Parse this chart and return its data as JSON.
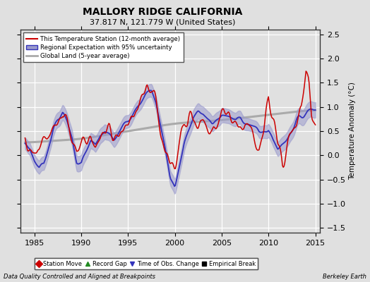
{
  "title": "MALLORY RIDGE CALIFORNIA",
  "subtitle": "37.817 N, 121.779 W (United States)",
  "ylabel": "Temperature Anomaly (°C)",
  "footer_left": "Data Quality Controlled and Aligned at Breakpoints",
  "footer_right": "Berkeley Earth",
  "xlim": [
    1983.5,
    2015.5
  ],
  "ylim": [
    -1.6,
    2.6
  ],
  "yticks": [
    -1.5,
    -1.0,
    -0.5,
    0.0,
    0.5,
    1.0,
    1.5,
    2.0,
    2.5
  ],
  "xticks": [
    1985,
    1990,
    1995,
    2000,
    2005,
    2010,
    2015
  ],
  "bg_color": "#e0e0e0",
  "plot_bg_color": "#e0e0e0",
  "grid_color": "#ffffff",
  "station_color": "#cc0000",
  "regional_color": "#3333bb",
  "regional_fill_color": "#9999cc",
  "global_color": "#aaaaaa",
  "legend_items": [
    {
      "label": "This Temperature Station (12-month average)",
      "color": "#cc0000",
      "lw": 1.5
    },
    {
      "label": "Regional Expectation with 95% uncertainty",
      "color": "#3333bb",
      "lw": 1.5
    },
    {
      "label": "Global Land (5-year average)",
      "color": "#aaaaaa",
      "lw": 2.0
    }
  ],
  "marker_items": [
    {
      "label": "Station Move",
      "color": "#cc0000",
      "marker": "D"
    },
    {
      "label": "Record Gap",
      "color": "#228b22",
      "marker": "^"
    },
    {
      "label": "Time of Obs. Change",
      "color": "#3333bb",
      "marker": "v"
    },
    {
      "label": "Empirical Break",
      "color": "#000000",
      "marker": "s"
    }
  ]
}
